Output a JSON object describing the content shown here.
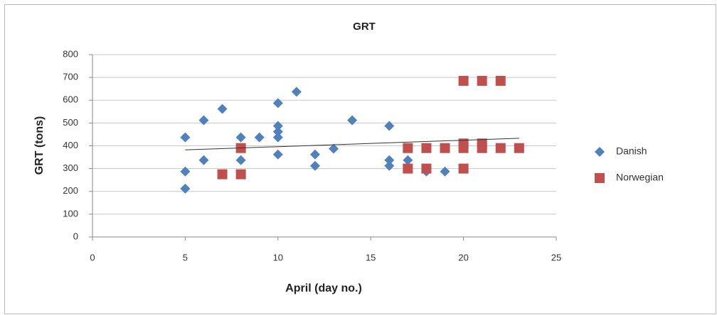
{
  "chart_data": {
    "type": "scatter",
    "title": "GRT",
    "x_label": "April (day no.)",
    "y_label": "GRT (tons)",
    "xlim": [
      0,
      25
    ],
    "xticks": [
      0,
      5,
      10,
      15,
      20,
      25
    ],
    "ylim": [
      0,
      800
    ],
    "yticks": [
      0,
      100,
      200,
      300,
      400,
      500,
      600,
      700,
      800
    ],
    "grid": true,
    "legend": "right",
    "series": [
      {
        "name": "Danish",
        "color": "#4f81bd",
        "marker": "diamond",
        "x": [
          5,
          5,
          5,
          6,
          6,
          7,
          8,
          8,
          9,
          10,
          10,
          10,
          10,
          10,
          11,
          12,
          12,
          13,
          14,
          16,
          16,
          16,
          17,
          18,
          19
        ],
        "values": [
          437,
          287,
          212,
          512,
          337,
          562,
          437,
          337,
          437,
          587,
          487,
          462,
          437,
          362,
          637,
          362,
          312,
          387,
          512,
          487,
          337,
          312,
          337,
          287,
          287
        ]
      },
      {
        "name": "Norwegian",
        "color": "#c0504d",
        "marker": "square",
        "x": [
          7,
          8,
          8,
          17,
          17,
          18,
          18,
          19,
          20,
          20,
          20,
          20,
          21,
          21,
          21,
          22,
          22,
          23
        ],
        "values": [
          275,
          390,
          275,
          390,
          300,
          390,
          300,
          390,
          685,
          410,
          390,
          300,
          685,
          410,
          390,
          685,
          390,
          390
        ]
      }
    ],
    "trendline": {
      "color": "#333333",
      "x": [
        5,
        23
      ],
      "values": [
        382,
        433
      ]
    }
  }
}
